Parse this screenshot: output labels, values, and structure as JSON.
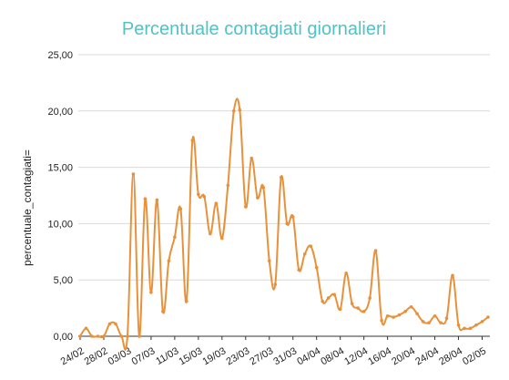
{
  "chart_data": {
    "type": "line",
    "title": "Percentuale contagiati giornalieri",
    "xlabel": "",
    "ylabel": "percentuale_contagiati=",
    "ylim": [
      0,
      25
    ],
    "ytick_values": [
      0,
      5,
      10,
      15,
      20,
      25
    ],
    "ytick_labels": [
      "0,00",
      "5,00",
      "10,00",
      "15,00",
      "20,00",
      "25,00"
    ],
    "xtick_labels": [
      "24/02",
      "28/02",
      "03/03",
      "07/03",
      "11/03",
      "15/03",
      "19/03",
      "23/03",
      "27/03",
      "31/03",
      "04/04",
      "08/04",
      "12/04",
      "16/04",
      "20/04",
      "24/04",
      "28/04",
      "02/05"
    ],
    "xtick_every": 4,
    "grid": true,
    "legend": "none",
    "colors": {
      "title": "#4fc3c7",
      "line": "#e8913a",
      "grid": "#d9d9d9",
      "axis": "#333333",
      "text": "#222222"
    },
    "series": [
      {
        "x": [
          "24/02",
          "25/02",
          "26/02",
          "27/02",
          "28/02",
          "29/02",
          "01/03",
          "02/03",
          "03/03",
          "04/03",
          "05/03",
          "06/03",
          "07/03",
          "08/03",
          "09/03",
          "10/03",
          "11/03",
          "12/03",
          "13/03",
          "14/03",
          "15/03",
          "16/03",
          "17/03",
          "18/03",
          "19/03",
          "20/03",
          "21/03",
          "22/03",
          "23/03",
          "24/03",
          "25/03",
          "26/03",
          "27/03",
          "28/03",
          "29/03",
          "30/03",
          "31/03",
          "01/04",
          "02/04",
          "03/04",
          "04/04",
          "05/04",
          "06/04",
          "07/04",
          "08/04",
          "09/04",
          "10/04",
          "11/04",
          "12/04",
          "13/04",
          "14/04",
          "15/04",
          "16/04",
          "17/04",
          "18/04",
          "19/04",
          "20/04",
          "21/04",
          "22/04",
          "23/04",
          "24/04",
          "25/04",
          "26/04",
          "27/04",
          "28/04",
          "29/04",
          "30/04",
          "01/05",
          "02/05",
          "03/05"
        ],
        "values": [
          0.0,
          0.7,
          0.0,
          0.0,
          0.0,
          1.1,
          1.1,
          0.0,
          0.0,
          14.4,
          0.0,
          12.2,
          3.9,
          12.1,
          2.2,
          6.7,
          8.8,
          11.3,
          3.1,
          17.4,
          12.6,
          12.4,
          9.1,
          11.8,
          8.7,
          13.4,
          20.0,
          20.1,
          11.5,
          15.8,
          12.3,
          13.2,
          6.7,
          4.6,
          14.1,
          10.0,
          10.6,
          5.9,
          7.3,
          8.0,
          6.1,
          3.1,
          3.4,
          3.7,
          2.4,
          5.6,
          2.9,
          2.5,
          2.2,
          3.4,
          7.6,
          1.4,
          1.8,
          1.7,
          1.9,
          2.2,
          2.6,
          2.0,
          1.3,
          1.2,
          1.8,
          1.2,
          1.6,
          5.4,
          1.0,
          0.7,
          0.7,
          1.0,
          1.3,
          1.7
        ]
      }
    ]
  }
}
